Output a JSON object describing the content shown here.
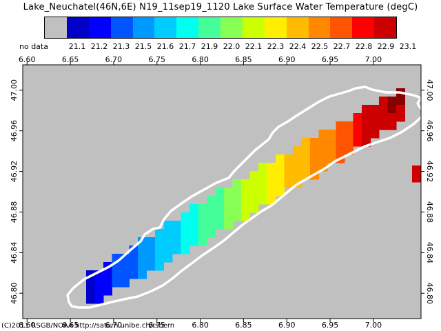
{
  "title": "Lake_Neuchatel(46N,6E) N19_11sep19_1120 Lake Surface Water Temperature (degC)",
  "legend": {
    "nodata_label": "no data",
    "nodata_color": "#c0c0c0",
    "labels": [
      "21.1",
      "21.2",
      "21.3",
      "21.5",
      "21.6",
      "21.7",
      "21.9",
      "22.0",
      "22.1",
      "22.3",
      "22.4",
      "22.5",
      "22.7",
      "22.8",
      "22.9",
      "23.1"
    ],
    "colors": [
      "#0000c8",
      "#0000ff",
      "#0055ff",
      "#0099ff",
      "#00ccff",
      "#00ffee",
      "#44ff99",
      "#88ff55",
      "#ccff00",
      "#ffee00",
      "#ffbb00",
      "#ff8800",
      "#ff5500",
      "#ff0000",
      "#cc0000",
      "#880000"
    ]
  },
  "footer": "(C)2011 RSGB/NOAA http://saturn.unibe.ch/rsbern",
  "map": {
    "background_color": "#c0c0c0",
    "shoreline_color": "#ffffff",
    "lon_ticks": [
      "6.60",
      "6.65",
      "6.70",
      "6.75",
      "6.80",
      "6.85",
      "6.90",
      "6.95",
      "7.00"
    ],
    "lat_ticks": [
      "46.80",
      "46.84",
      "46.88",
      "46.92",
      "46.96",
      "47.00"
    ],
    "lon_range": [
      6.595,
      7.055
    ],
    "lat_range": [
      46.775,
      47.025
    ]
  }
}
